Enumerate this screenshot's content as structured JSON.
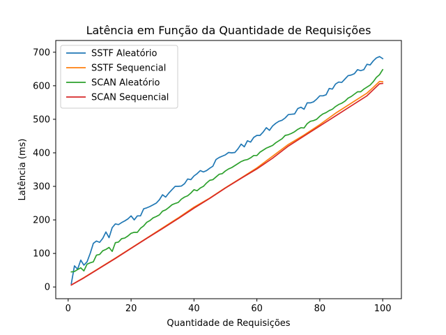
{
  "chart_data": {
    "type": "line",
    "title": "Latência em Função da Quantidade de Requisições",
    "xlabel": "Quantidade de Requisições",
    "ylabel": "Latência (ms)",
    "xlim": [
      -3.95,
      105.95
    ],
    "ylim": [
      -35,
      735
    ],
    "xticks": [
      0,
      20,
      40,
      60,
      80,
      100
    ],
    "yticks": [
      0,
      100,
      200,
      300,
      400,
      500,
      600,
      700
    ],
    "grid": false,
    "legend_position": "top-left",
    "series": [
      {
        "name": "SSTF Aleatório",
        "color": "#1f77b4",
        "points": [
          [
            1,
            10
          ],
          [
            2,
            63
          ],
          [
            3,
            53
          ],
          [
            4,
            80
          ],
          [
            5,
            65
          ],
          [
            6,
            75
          ],
          [
            7,
            100
          ],
          [
            8,
            130
          ],
          [
            9,
            137
          ],
          [
            10,
            133
          ],
          [
            11,
            145
          ],
          [
            12,
            164
          ],
          [
            13,
            147
          ],
          [
            14,
            177
          ],
          [
            15,
            188
          ],
          [
            16,
            186
          ],
          [
            17,
            192
          ],
          [
            18,
            197
          ],
          [
            19,
            203
          ],
          [
            20,
            212
          ],
          [
            21,
            200
          ],
          [
            22,
            212
          ],
          [
            23,
            212
          ],
          [
            24,
            233
          ],
          [
            25,
            236
          ],
          [
            26,
            240
          ],
          [
            27,
            245
          ],
          [
            28,
            250
          ],
          [
            29,
            260
          ],
          [
            30,
            275
          ],
          [
            31,
            268
          ],
          [
            32,
            280
          ],
          [
            33,
            290
          ],
          [
            34,
            300
          ],
          [
            35,
            300
          ],
          [
            36,
            301
          ],
          [
            37,
            308
          ],
          [
            38,
            322
          ],
          [
            39,
            320
          ],
          [
            40,
            331
          ],
          [
            41,
            338
          ],
          [
            42,
            347
          ],
          [
            43,
            343
          ],
          [
            44,
            347
          ],
          [
            45,
            354
          ],
          [
            46,
            360
          ],
          [
            47,
            380
          ],
          [
            48,
            386
          ],
          [
            49,
            390
          ],
          [
            50,
            394
          ],
          [
            51,
            401
          ],
          [
            52,
            400
          ],
          [
            53,
            401
          ],
          [
            54,
            412
          ],
          [
            55,
            426
          ],
          [
            56,
            418
          ],
          [
            57,
            436
          ],
          [
            58,
            432
          ],
          [
            59,
            446
          ],
          [
            60,
            452
          ],
          [
            61,
            452
          ],
          [
            62,
            462
          ],
          [
            63,
            475
          ],
          [
            64,
            467
          ],
          [
            65,
            480
          ],
          [
            66,
            488
          ],
          [
            67,
            494
          ],
          [
            68,
            497
          ],
          [
            69,
            504
          ],
          [
            70,
            514
          ],
          [
            71,
            515
          ],
          [
            72,
            516
          ],
          [
            73,
            532
          ],
          [
            74,
            536
          ],
          [
            75,
            530
          ],
          [
            76,
            549
          ],
          [
            77,
            549
          ],
          [
            78,
            552
          ],
          [
            79,
            560
          ],
          [
            80,
            570
          ],
          [
            81,
            570
          ],
          [
            82,
            573
          ],
          [
            83,
            592
          ],
          [
            84,
            590
          ],
          [
            85,
            605
          ],
          [
            86,
            611
          ],
          [
            87,
            610
          ],
          [
            88,
            620
          ],
          [
            89,
            630
          ],
          [
            90,
            632
          ],
          [
            91,
            636
          ],
          [
            92,
            648
          ],
          [
            93,
            645
          ],
          [
            94,
            648
          ],
          [
            95,
            664
          ],
          [
            96,
            662
          ],
          [
            97,
            674
          ],
          [
            98,
            683
          ],
          [
            99,
            687
          ],
          [
            100,
            681
          ]
        ]
      },
      {
        "name": "SSTF Sequencial",
        "color": "#ff7f0e",
        "points": [
          [
            1,
            6
          ],
          [
            5,
            28
          ],
          [
            10,
            57
          ],
          [
            15,
            86
          ],
          [
            20,
            116
          ],
          [
            25,
            146
          ],
          [
            30,
            176
          ],
          [
            35,
            206
          ],
          [
            40,
            238
          ],
          [
            45,
            265
          ],
          [
            50,
            296
          ],
          [
            55,
            325
          ],
          [
            60,
            355
          ],
          [
            65,
            390
          ],
          [
            70,
            425
          ],
          [
            75,
            453
          ],
          [
            80,
            484
          ],
          [
            85,
            518
          ],
          [
            90,
            548
          ],
          [
            95,
            578
          ],
          [
            97,
            595
          ],
          [
            99,
            613
          ],
          [
            100,
            612
          ]
        ]
      },
      {
        "name": "SCAN Aleatório",
        "color": "#2ca02c",
        "points": [
          [
            1,
            45
          ],
          [
            2,
            46
          ],
          [
            3,
            52
          ],
          [
            4,
            57
          ],
          [
            5,
            48
          ],
          [
            6,
            68
          ],
          [
            7,
            72
          ],
          [
            8,
            75
          ],
          [
            9,
            95
          ],
          [
            10,
            97
          ],
          [
            11,
            108
          ],
          [
            12,
            112
          ],
          [
            13,
            118
          ],
          [
            14,
            106
          ],
          [
            15,
            132
          ],
          [
            16,
            134
          ],
          [
            17,
            144
          ],
          [
            18,
            146
          ],
          [
            19,
            152
          ],
          [
            20,
            160
          ],
          [
            21,
            163
          ],
          [
            22,
            163
          ],
          [
            23,
            175
          ],
          [
            24,
            182
          ],
          [
            25,
            193
          ],
          [
            26,
            198
          ],
          [
            27,
            206
          ],
          [
            28,
            210
          ],
          [
            29,
            215
          ],
          [
            30,
            226
          ],
          [
            31,
            230
          ],
          [
            32,
            237
          ],
          [
            33,
            245
          ],
          [
            34,
            249
          ],
          [
            35,
            252
          ],
          [
            36,
            262
          ],
          [
            37,
            268
          ],
          [
            38,
            272
          ],
          [
            39,
            280
          ],
          [
            40,
            290
          ],
          [
            41,
            287
          ],
          [
            42,
            295
          ],
          [
            43,
            300
          ],
          [
            44,
            310
          ],
          [
            45,
            318
          ],
          [
            46,
            320
          ],
          [
            47,
            328
          ],
          [
            48,
            336
          ],
          [
            49,
            338
          ],
          [
            50,
            346
          ],
          [
            51,
            352
          ],
          [
            52,
            356
          ],
          [
            53,
            362
          ],
          [
            54,
            368
          ],
          [
            55,
            374
          ],
          [
            56,
            378
          ],
          [
            57,
            380
          ],
          [
            58,
            385
          ],
          [
            59,
            392
          ],
          [
            60,
            392
          ],
          [
            61,
            402
          ],
          [
            62,
            408
          ],
          [
            63,
            414
          ],
          [
            64,
            418
          ],
          [
            65,
            422
          ],
          [
            66,
            430
          ],
          [
            67,
            436
          ],
          [
            68,
            442
          ],
          [
            69,
            452
          ],
          [
            70,
            454
          ],
          [
            71,
            458
          ],
          [
            72,
            463
          ],
          [
            73,
            470
          ],
          [
            74,
            475
          ],
          [
            75,
            474
          ],
          [
            76,
            487
          ],
          [
            77,
            494
          ],
          [
            78,
            496
          ],
          [
            79,
            500
          ],
          [
            80,
            509
          ],
          [
            81,
            516
          ],
          [
            82,
            520
          ],
          [
            83,
            526
          ],
          [
            84,
            530
          ],
          [
            85,
            538
          ],
          [
            86,
            544
          ],
          [
            87,
            548
          ],
          [
            88,
            554
          ],
          [
            89,
            563
          ],
          [
            90,
            568
          ],
          [
            91,
            575
          ],
          [
            92,
            582
          ],
          [
            93,
            582
          ],
          [
            94,
            590
          ],
          [
            95,
            596
          ],
          [
            96,
            602
          ],
          [
            97,
            612
          ],
          [
            98,
            625
          ],
          [
            99,
            633
          ],
          [
            100,
            648
          ]
        ]
      },
      {
        "name": "SCAN Sequencial",
        "color": "#d62728",
        "points": [
          [
            1,
            6
          ],
          [
            5,
            27
          ],
          [
            10,
            56
          ],
          [
            15,
            85
          ],
          [
            20,
            115
          ],
          [
            25,
            145
          ],
          [
            30,
            174
          ],
          [
            35,
            204
          ],
          [
            40,
            235
          ],
          [
            45,
            264
          ],
          [
            50,
            295
          ],
          [
            55,
            324
          ],
          [
            60,
            352
          ],
          [
            65,
            384
          ],
          [
            70,
            420
          ],
          [
            75,
            450
          ],
          [
            80,
            480
          ],
          [
            85,
            510
          ],
          [
            90,
            540
          ],
          [
            95,
            570
          ],
          [
            99,
            606
          ],
          [
            100,
            607
          ]
        ]
      }
    ]
  }
}
